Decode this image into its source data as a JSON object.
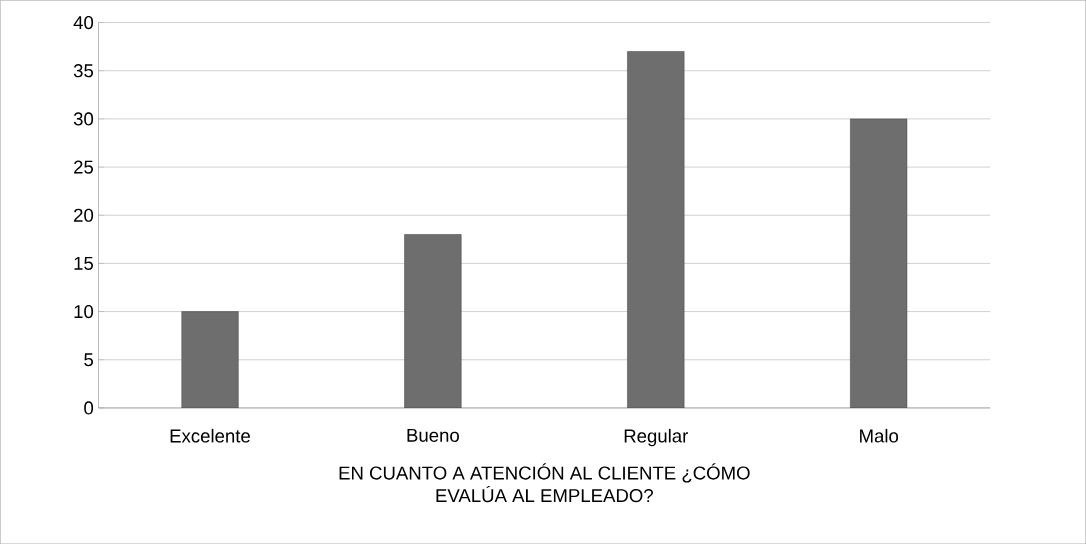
{
  "chart_data": {
    "type": "bar",
    "categories": [
      "Excelente",
      "Bueno",
      "Regular",
      "Malo"
    ],
    "values": [
      10,
      18,
      37,
      30
    ],
    "color": "#6e6e6e",
    "ylim": [
      0,
      40
    ],
    "yticks": [
      0,
      5,
      10,
      15,
      20,
      25,
      30,
      35,
      40
    ],
    "grid": "y",
    "xlabel": "EN CUANTO A ATENCIÓN AL CLIENTE ¿CÓMO EVALÚA AL EMPLEADO?"
  }
}
